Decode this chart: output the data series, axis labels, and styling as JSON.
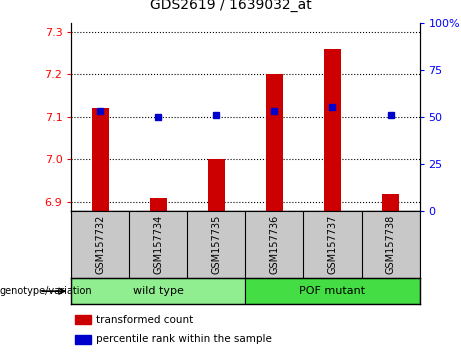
{
  "title": "GDS2619 / 1639032_at",
  "samples": [
    "GSM157732",
    "GSM157734",
    "GSM157735",
    "GSM157736",
    "GSM157737",
    "GSM157738"
  ],
  "red_values": [
    7.12,
    6.91,
    7.0,
    7.2,
    7.26,
    6.92
  ],
  "blue_percentile": [
    53,
    50,
    51,
    53,
    55,
    51
  ],
  "ylim_left": [
    6.88,
    7.32
  ],
  "ylim_right": [
    0,
    100
  ],
  "yticks_left": [
    6.9,
    7.0,
    7.1,
    7.2,
    7.3
  ],
  "yticks_right": [
    0,
    25,
    50,
    75,
    100
  ],
  "groups": [
    {
      "label": "wild type",
      "indices": [
        0,
        1,
        2
      ],
      "color": "#90EE90"
    },
    {
      "label": "POF mutant",
      "indices": [
        3,
        4,
        5
      ],
      "color": "#44DD44"
    }
  ],
  "bar_width": 0.3,
  "red_color": "#CC0000",
  "blue_color": "#0000CC",
  "genotype_label": "genotype/variation",
  "legend_red": "transformed count",
  "legend_blue": "percentile rank within the sample",
  "bg_sample_box": "#C8C8C8",
  "title_fontsize": 10
}
